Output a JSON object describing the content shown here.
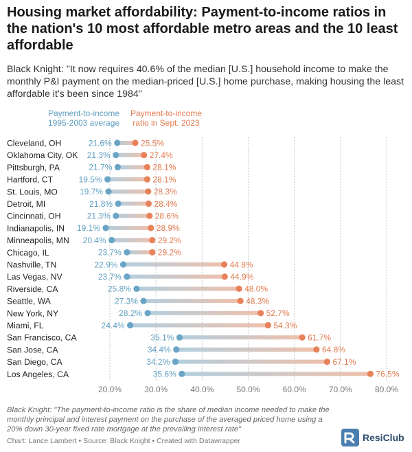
{
  "header": {
    "title": "Housing market affordability: Payment-to-income ratios in the nation's 10 most affordable metro areas and the 10 least affordable",
    "subtitle": "Black Knight: \"It now requires 40.6% of the median [U.S.] household income to make the monthly P&I payment on the median-priced [U.S.] home purchase, making housing the least affordable it's been since 1984\""
  },
  "legend": {
    "series_1": "Payment-to-income 1995-2003 average",
    "series_2": "Payment-to-income ratio in Sept. 2023"
  },
  "footer": {
    "note": "Black Knight: \"The payment-to-income ratio is the share of median income needed to make the monthly principal and interest payment on the purchase of the averaged priced home using a 20% down 30-year fixed rate mortgage at the prevailing interest rate\"",
    "credit": "Chart: Lance Lambert • Source: Black Knight • Created with Datawrapper",
    "logo_text": "ResiClub"
  },
  "colors": {
    "series_1": "#6aa5c6",
    "series_2": "#e8825a",
    "grid": "#c9c9c9"
  },
  "chart_data": {
    "type": "dot-range",
    "title": "Housing market affordability: Payment-to-income ratios in the nation's 10 most affordable metro areas and the 10 least affordable",
    "categories": [
      "Cleveland, OH",
      "Oklahoma City, OK",
      "Pittsburgh, PA",
      "Hartford, CT",
      "St. Louis, MO",
      "Detroit, MI",
      "Cincinnati, OH",
      "Indianapolis, IN",
      "Minneapolis, MN",
      "Chicago, IL",
      "Nashville, TN",
      "Las Vegas, NV",
      "Riverside, CA",
      "Seattle, WA",
      "New York, NY",
      "Miami, FL",
      "San Francisco, CA",
      "San Jose, CA",
      "San Diego, CA",
      "Los Angeles, CA"
    ],
    "series": [
      {
        "name": "Payment-to-income 1995-2003 average",
        "values": [
          21.6,
          21.3,
          21.7,
          19.5,
          19.7,
          21.8,
          21.3,
          19.1,
          20.4,
          23.7,
          22.9,
          23.7,
          25.8,
          27.3,
          28.2,
          24.4,
          35.1,
          34.4,
          34.2,
          35.6
        ]
      },
      {
        "name": "Payment-to-income ratio in Sept. 2023",
        "values": [
          25.5,
          27.4,
          28.1,
          28.1,
          28.3,
          28.4,
          28.6,
          28.9,
          29.2,
          29.2,
          44.8,
          44.9,
          48.0,
          48.3,
          52.7,
          54.3,
          61.7,
          64.8,
          67.1,
          76.5
        ]
      }
    ],
    "xlim": [
      20,
      80
    ],
    "xticks": [
      "20.0%",
      "30.0%",
      "40.0%",
      "50.0%",
      "60.0%",
      "70.0%",
      "80.0%"
    ],
    "grid": true,
    "value_suffix": "%"
  }
}
